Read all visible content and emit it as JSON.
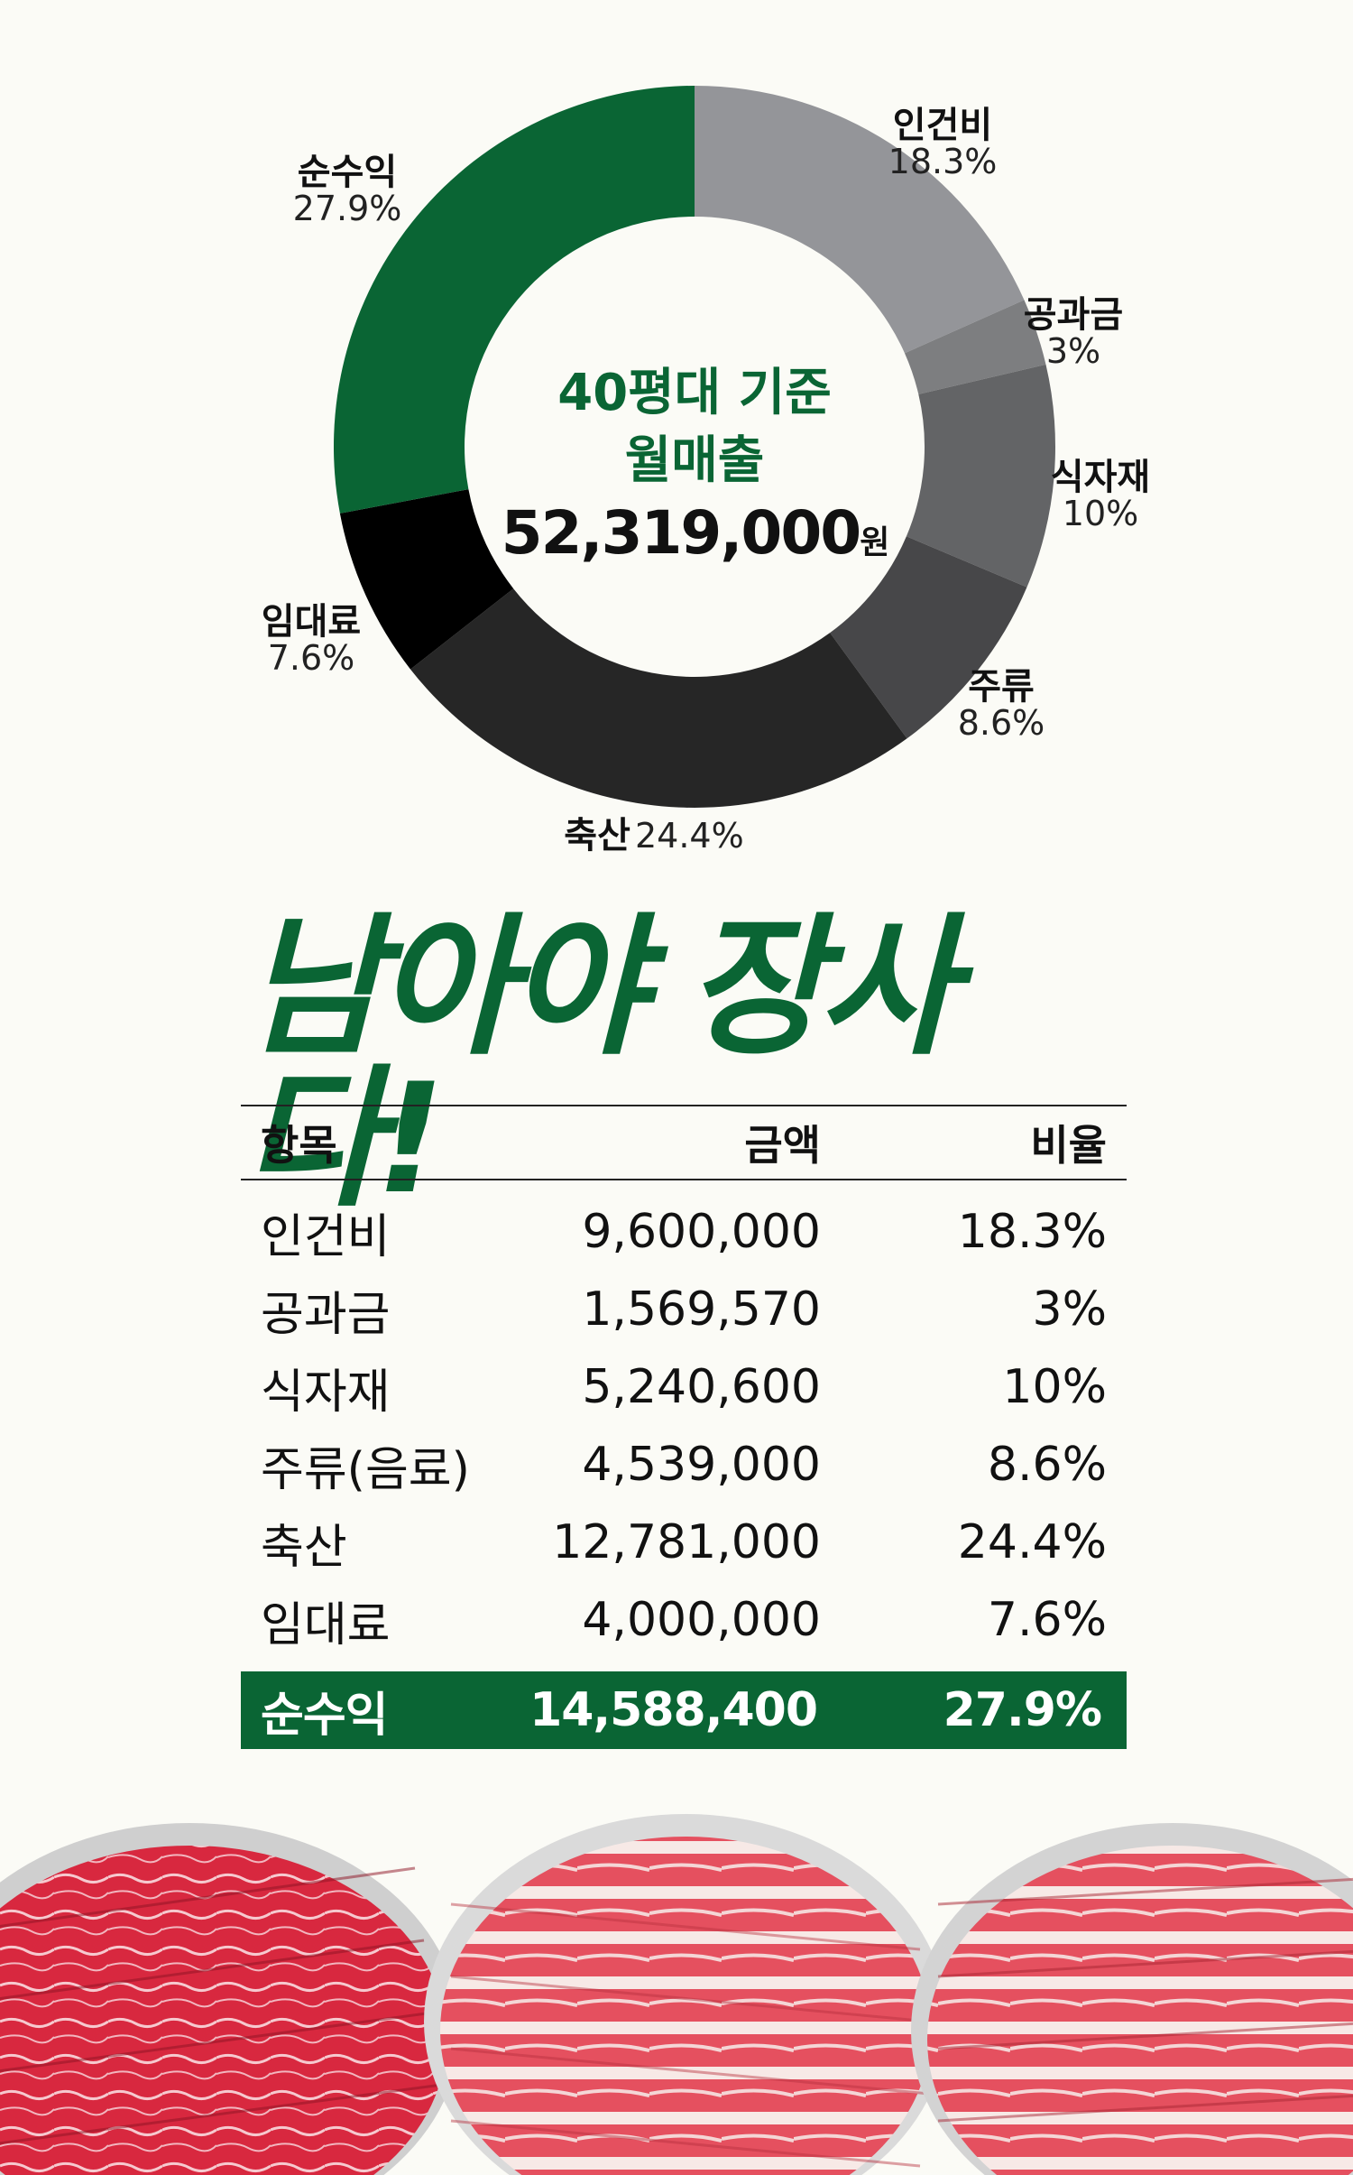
{
  "chart_data": {
    "type": "donut",
    "center_text": [
      "40평대 기준",
      "월매출",
      "52,319,000"
    ],
    "center_unit": "원",
    "slices": [
      {
        "name": "인건비",
        "value": 18.3,
        "label": "18.3%",
        "color": "#949599"
      },
      {
        "name": "공과금",
        "value": 3,
        "label": "3%",
        "color": "#7d7e80"
      },
      {
        "name": "식자재",
        "value": 10,
        "label": "10%",
        "color": "#636466"
      },
      {
        "name": "주류",
        "value": 8.6,
        "label": "8.6%",
        "color": "#474749"
      },
      {
        "name": "축산",
        "value": 24.4,
        "label": "24.4%",
        "color": "#262626"
      },
      {
        "name": "임대료",
        "value": 7.6,
        "label": "7.6%",
        "color": "#000000"
      },
      {
        "name": "순수익",
        "value": 27.9,
        "label": "27.9%",
        "color": "#0a6534"
      }
    ]
  },
  "headline": "남아야 장사다!",
  "table": {
    "headers": [
      "항목",
      "금액",
      "비율"
    ],
    "rows": [
      [
        "인건비",
        "9,600,000",
        "18.3%"
      ],
      [
        "공과금",
        "1,569,570",
        "3%"
      ],
      [
        "식자재",
        "5,240,600",
        "10%"
      ],
      [
        "주류(음료)",
        "4,539,000",
        "8.6%"
      ],
      [
        "축산",
        "12,781,000",
        "24.4%"
      ],
      [
        "임대료",
        "4,000,000",
        "7.6%"
      ]
    ],
    "total": [
      "순수익",
      "14,588,400",
      "27.9%"
    ]
  },
  "colors": {
    "accent": "#0a6534",
    "background": "#fbfbf6"
  }
}
